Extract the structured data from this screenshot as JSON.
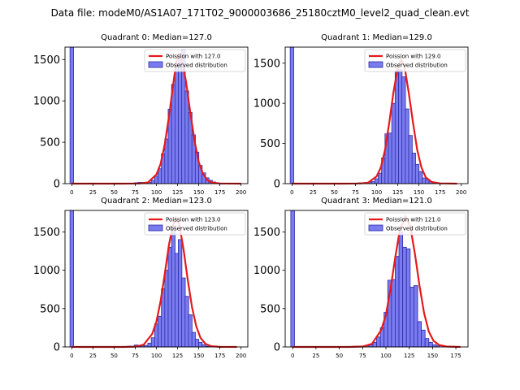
{
  "suptitle": "Data file: modeM0/AS1A07_171T02_9000003686_25180cztM0_level2_quad_clean.evt",
  "colors": {
    "bars": "#7b7bf0",
    "bar_edge": "#2a2aa8",
    "fit": "#e41a1c"
  },
  "chart_data": [
    {
      "type": "bar",
      "title": "Quadrant 0: Median=127.0",
      "median": 127.0,
      "legend": {
        "fit": "Poission with 127.0",
        "obs": "Observed distribution",
        "placement": "top-right"
      },
      "xlim": [
        -8,
        208
      ],
      "ylim": [
        0,
        1650
      ],
      "xticks": [
        0,
        25,
        50,
        75,
        100,
        125,
        150,
        175,
        200
      ],
      "yticks": [
        0,
        500,
        1000,
        1500
      ],
      "bin_width": 4.2,
      "bins": [
        [
          0,
          1650
        ],
        [
          76,
          10
        ],
        [
          80,
          15
        ],
        [
          84,
          15
        ],
        [
          88,
          10
        ],
        [
          92,
          15
        ],
        [
          96,
          40
        ],
        [
          100,
          90
        ],
        [
          104,
          180
        ],
        [
          108,
          360
        ],
        [
          112,
          540
        ],
        [
          116,
          900
        ],
        [
          120,
          1200
        ],
        [
          124,
          1450
        ],
        [
          128,
          1530
        ],
        [
          132,
          1620
        ],
        [
          136,
          1120
        ],
        [
          140,
          860
        ],
        [
          144,
          590
        ],
        [
          148,
          380
        ],
        [
          152,
          220
        ],
        [
          156,
          130
        ],
        [
          160,
          70
        ],
        [
          164,
          40
        ],
        [
          168,
          20
        ],
        [
          172,
          8
        ]
      ],
      "fit_curve": [
        [
          0,
          0
        ],
        [
          60,
          0
        ],
        [
          80,
          2
        ],
        [
          90,
          15
        ],
        [
          100,
          110
        ],
        [
          105,
          240
        ],
        [
          110,
          480
        ],
        [
          115,
          820
        ],
        [
          120,
          1210
        ],
        [
          124,
          1500
        ],
        [
          127,
          1570
        ],
        [
          130,
          1510
        ],
        [
          135,
          1230
        ],
        [
          140,
          860
        ],
        [
          145,
          520
        ],
        [
          150,
          260
        ],
        [
          155,
          120
        ],
        [
          160,
          45
        ],
        [
          165,
          15
        ],
        [
          175,
          2
        ],
        [
          200,
          0
        ]
      ]
    },
    {
      "type": "bar",
      "title": "Quadrant 1: Median=129.0",
      "median": 129.0,
      "legend": {
        "fit": "Poission with 129.0",
        "obs": "Observed distribution",
        "placement": "top-right"
      },
      "xlim": [
        -8,
        208
      ],
      "ylim": [
        0,
        1700
      ],
      "xticks": [
        0,
        25,
        50,
        75,
        100,
        125,
        150,
        175,
        200
      ],
      "yticks": [
        0,
        500,
        1000,
        1500
      ],
      "bin_width": 4.2,
      "bins": [
        [
          0,
          1700
        ],
        [
          80,
          10
        ],
        [
          84,
          10
        ],
        [
          88,
          15
        ],
        [
          92,
          20
        ],
        [
          96,
          25
        ],
        [
          100,
          60
        ],
        [
          104,
          130
        ],
        [
          108,
          320
        ],
        [
          112,
          620
        ],
        [
          116,
          630
        ],
        [
          120,
          1000
        ],
        [
          124,
          1400
        ],
        [
          128,
          1420
        ],
        [
          132,
          1330
        ],
        [
          136,
          930
        ],
        [
          140,
          600
        ],
        [
          144,
          380
        ],
        [
          148,
          240
        ],
        [
          152,
          150
        ],
        [
          156,
          70
        ],
        [
          160,
          50
        ],
        [
          164,
          25
        ],
        [
          168,
          10
        ]
      ],
      "fit_curve": [
        [
          0,
          0
        ],
        [
          60,
          0
        ],
        [
          80,
          2
        ],
        [
          90,
          12
        ],
        [
          100,
          90
        ],
        [
          105,
          200
        ],
        [
          110,
          420
        ],
        [
          115,
          760
        ],
        [
          120,
          1140
        ],
        [
          125,
          1440
        ],
        [
          129,
          1540
        ],
        [
          133,
          1460
        ],
        [
          138,
          1130
        ],
        [
          143,
          760
        ],
        [
          148,
          420
        ],
        [
          153,
          200
        ],
        [
          158,
          80
        ],
        [
          165,
          20
        ],
        [
          175,
          3
        ],
        [
          195,
          0
        ]
      ]
    },
    {
      "type": "bar",
      "title": "Quadrant 2: Median=123.0",
      "median": 123.0,
      "legend": {
        "fit": "Poission with 123.0",
        "obs": "Observed distribution",
        "placement": "top-right"
      },
      "xlim": [
        -8,
        208
      ],
      "ylim": [
        0,
        1780
      ],
      "xticks": [
        0,
        25,
        50,
        75,
        100,
        125,
        150,
        175,
        200
      ],
      "yticks": [
        0,
        500,
        1000,
        1500
      ],
      "bin_width": 4.2,
      "bins": [
        [
          0,
          1780
        ],
        [
          68,
          10
        ],
        [
          72,
          10
        ],
        [
          76,
          25
        ],
        [
          80,
          20
        ],
        [
          84,
          15
        ],
        [
          88,
          20
        ],
        [
          92,
          50
        ],
        [
          96,
          120
        ],
        [
          100,
          300
        ],
        [
          104,
          400
        ],
        [
          108,
          760
        ],
        [
          112,
          1000
        ],
        [
          116,
          1300
        ],
        [
          120,
          1580
        ],
        [
          124,
          1220
        ],
        [
          128,
          1400
        ],
        [
          132,
          900
        ],
        [
          136,
          660
        ],
        [
          140,
          420
        ],
        [
          144,
          190
        ],
        [
          148,
          100
        ],
        [
          152,
          60
        ],
        [
          156,
          30
        ],
        [
          160,
          10
        ]
      ],
      "fit_curve": [
        [
          0,
          0
        ],
        [
          60,
          0
        ],
        [
          75,
          3
        ],
        [
          85,
          30
        ],
        [
          95,
          170
        ],
        [
          100,
          330
        ],
        [
          105,
          600
        ],
        [
          110,
          960
        ],
        [
          115,
          1340
        ],
        [
          120,
          1600
        ],
        [
          123,
          1680
        ],
        [
          127,
          1600
        ],
        [
          132,
          1280
        ],
        [
          137,
          880
        ],
        [
          142,
          520
        ],
        [
          147,
          270
        ],
        [
          152,
          120
        ],
        [
          158,
          40
        ],
        [
          165,
          10
        ],
        [
          175,
          1
        ],
        [
          195,
          0
        ]
      ]
    },
    {
      "type": "bar",
      "title": "Quadrant 3: Median=121.0",
      "median": 121.0,
      "legend": {
        "fit": "Poission with 121.0",
        "obs": "Observed distribution",
        "placement": "top-right"
      },
      "xlim": [
        -8,
        188
      ],
      "ylim": [
        0,
        1780
      ],
      "xticks": [
        0,
        25,
        50,
        75,
        100,
        125,
        150,
        175
      ],
      "yticks": [
        0,
        500,
        1000,
        1500
      ],
      "bin_width": 4.0,
      "bins": [
        [
          0,
          1780
        ],
        [
          68,
          10
        ],
        [
          72,
          12
        ],
        [
          76,
          10
        ],
        [
          80,
          15
        ],
        [
          84,
          25
        ],
        [
          88,
          60
        ],
        [
          92,
          130
        ],
        [
          96,
          250
        ],
        [
          100,
          450
        ],
        [
          104,
          870
        ],
        [
          108,
          880
        ],
        [
          112,
          1180
        ],
        [
          116,
          1500
        ],
        [
          120,
          1300
        ],
        [
          124,
          1280
        ],
        [
          128,
          780
        ],
        [
          132,
          800
        ],
        [
          136,
          330
        ],
        [
          140,
          220
        ],
        [
          144,
          110
        ],
        [
          148,
          60
        ],
        [
          152,
          30
        ],
        [
          156,
          15
        ]
      ],
      "fit_curve": [
        [
          0,
          0
        ],
        [
          60,
          0
        ],
        [
          75,
          5
        ],
        [
          85,
          40
        ],
        [
          95,
          220
        ],
        [
          100,
          420
        ],
        [
          105,
          760
        ],
        [
          110,
          1170
        ],
        [
          115,
          1530
        ],
        [
          121,
          1700
        ],
        [
          126,
          1580
        ],
        [
          131,
          1220
        ],
        [
          136,
          800
        ],
        [
          141,
          440
        ],
        [
          146,
          200
        ],
        [
          151,
          80
        ],
        [
          157,
          25
        ],
        [
          165,
          5
        ],
        [
          180,
          0
        ]
      ]
    }
  ]
}
